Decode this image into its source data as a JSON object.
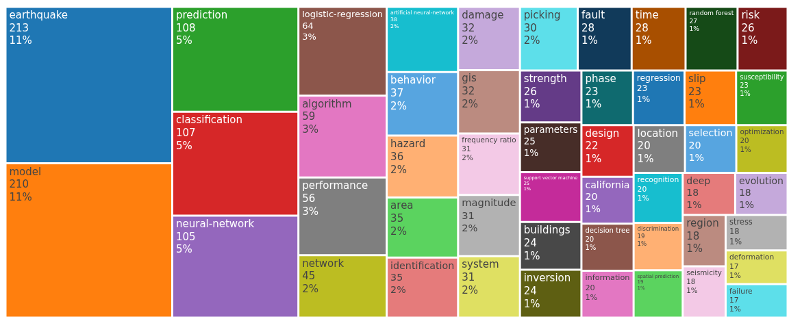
{
  "chart_data": {
    "type": "other",
    "categories": [
      "earthquake",
      "model",
      "prediction",
      "classification",
      "neural-network",
      "logistic-regression",
      "algorithm",
      "performance",
      "network",
      "artificial neural-network",
      "behavior",
      "hazard",
      "area",
      "identification",
      "damage",
      "gis",
      "frequency ratio",
      "magnitude",
      "system",
      "picking",
      "fault",
      "time",
      "random forest",
      "risk",
      "strength",
      "parameters",
      "support vector machine",
      "buildings",
      "inversion",
      "phase",
      "regression",
      "slip",
      "susceptibility",
      "design",
      "california",
      "decision tree",
      "information",
      "location",
      "selection",
      "optimization",
      "recognition",
      "discrimination",
      "spatial prediction",
      "deep",
      "evolution",
      "region",
      "seismicity",
      "stress",
      "deformation",
      "failure"
    ],
    "values": [
      213,
      210,
      108,
      107,
      105,
      64,
      59,
      56,
      45,
      38,
      37,
      36,
      35,
      35,
      32,
      32,
      31,
      31,
      31,
      30,
      28,
      28,
      27,
      26,
      26,
      25,
      25,
      24,
      24,
      23,
      23,
      23,
      23,
      22,
      20,
      20,
      20,
      20,
      20,
      20,
      20,
      19,
      19,
      18,
      18,
      18,
      18,
      18,
      17,
      17
    ],
    "value_labels": [
      "213\n11%",
      "210\n11%",
      "108\n5%",
      "107\n5%",
      "105\n5%",
      "64\n3%",
      "59\n3%",
      "56\n3%",
      "45\n2%",
      "38\n2%",
      "37\n2%",
      "36\n2%",
      "35\n2%",
      "35\n2%",
      "32\n2%",
      "32\n2%",
      "31\n2%",
      "31\n2%",
      "31\n2%",
      "30\n2%",
      "28\n1%",
      "28\n1%",
      "27\n1%",
      "26\n1%",
      "26\n1%",
      "25\n1%",
      "25\n1%",
      "24\n1%",
      "24\n1%",
      "23\n1%",
      "23\n1%",
      "23\n1%",
      "23\n1%",
      "22\n1%",
      "20\n1%",
      "20\n1%",
      "20\n1%",
      "20\n1%",
      "20\n1%",
      "20\n1%",
      "20\n1%",
      "19\n1%",
      "19\n1%",
      "18\n1%",
      "18\n1%",
      "18\n1%",
      "18\n1%",
      "18\n1%",
      "17\n1%",
      "17\n1%"
    ],
    "colors": [
      "#1f77b4",
      "#ff7f0e",
      "#2ca02c",
      "#d62728",
      "#9467bd",
      "#8c564b",
      "#e377c2",
      "#7f7f7f",
      "#bcbd22",
      "#17becf",
      "#57a5e0",
      "#ffb073",
      "#5bd35f",
      "#e57b7b",
      "#c5a9db",
      "#bb8b80",
      "#f3c9e6",
      "#b2b2b2",
      "#dfe062",
      "#5ddfea",
      "#113a5a",
      "#a84f00",
      "#154a17",
      "#7b1a1a",
      "#643b87",
      "#472d28",
      "#c42b9a",
      "#484848",
      "#5e5f12",
      "#0f6a6f",
      "#1f77b4",
      "#ff7f0e",
      "#2ca02c",
      "#d62728",
      "#9467bd",
      "#8c564b",
      "#e377c2",
      "#7f7f7f",
      "#57a5e0",
      "#bcbd22",
      "#17becf",
      "#ffb073",
      "#5bd35f",
      "#e57b7b",
      "#c5a9db",
      "#bb8b80",
      "#f3c9e6",
      "#b2b2b2",
      "#dfe062",
      "#5ddfea"
    ]
  }
}
